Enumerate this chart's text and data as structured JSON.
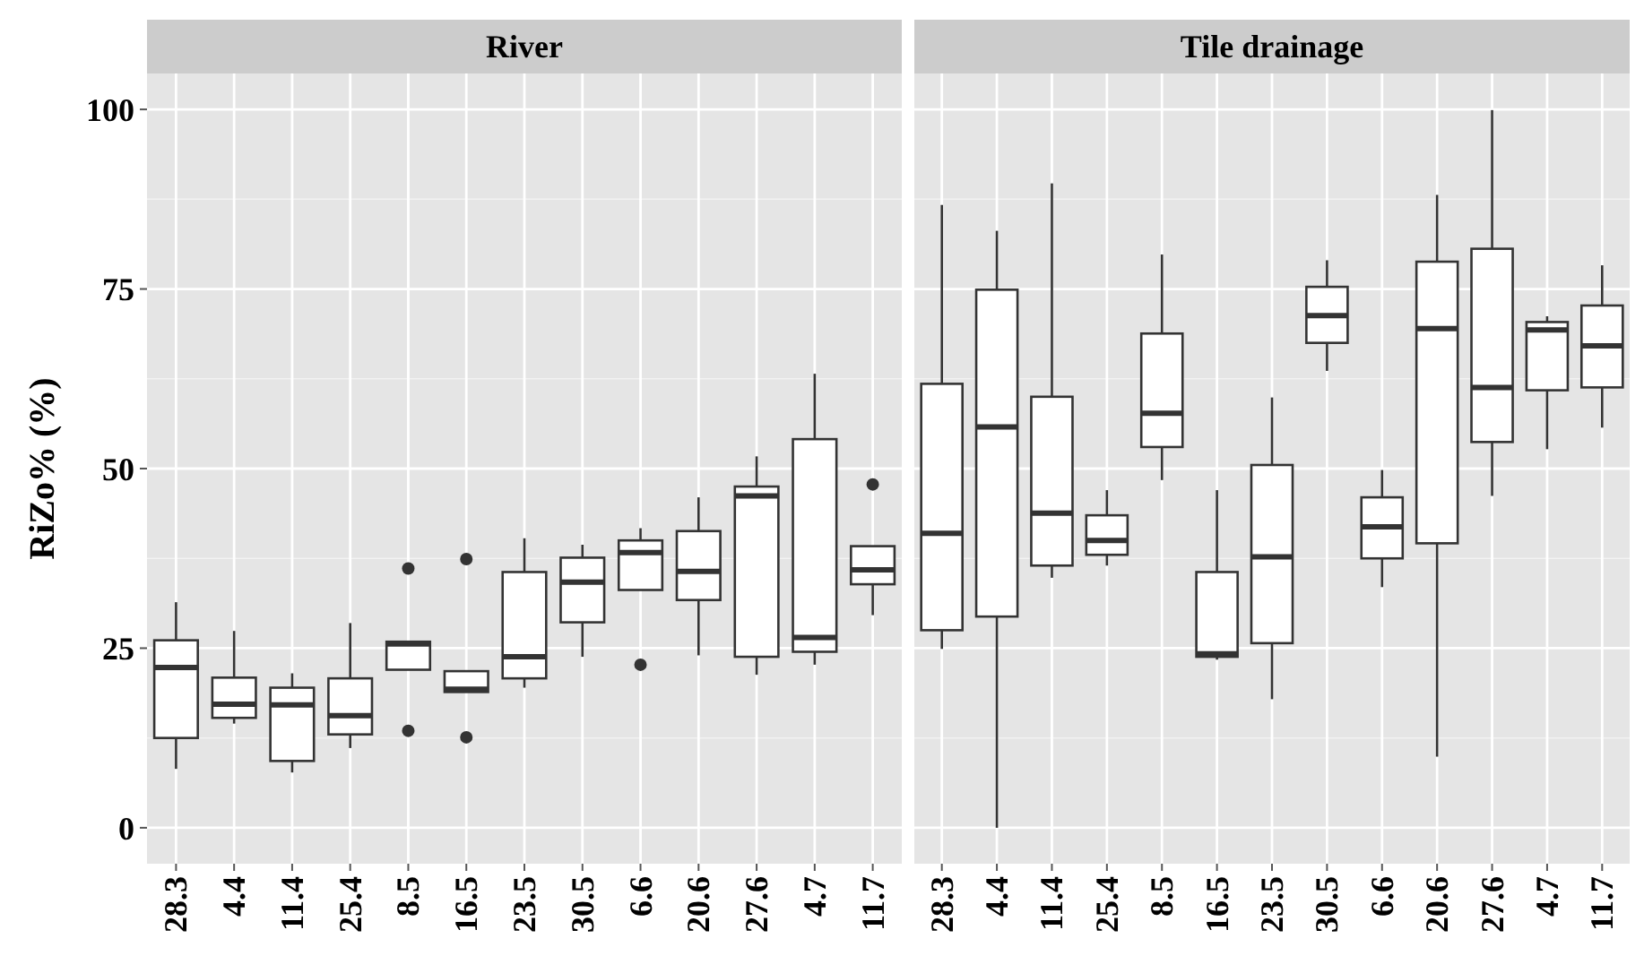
{
  "chart_data": [
    {
      "type": "box",
      "title": "River",
      "ylabel": "RiZo% (%)",
      "categories": [
        "28.3",
        "4.4",
        "11.4",
        "25.4",
        "8.5",
        "16.5",
        "23.5",
        "30.5",
        "6.6",
        "20.6",
        "27.6",
        "4.7",
        "11.7"
      ],
      "ylim": [
        -5,
        105
      ],
      "yticks": [
        0,
        25,
        50,
        75,
        100
      ],
      "grid": true,
      "boxes": [
        {
          "low": 8.2,
          "q1": 12.5,
          "median": 22.3,
          "q3": 26.1,
          "high": 31.4
        },
        {
          "low": 14.5,
          "q1": 15.3,
          "median": 17.2,
          "q3": 20.9,
          "high": 27.4
        },
        {
          "low": 7.7,
          "q1": 9.3,
          "median": 17.1,
          "q3": 19.5,
          "high": 21.5
        },
        {
          "low": 11.1,
          "q1": 13,
          "median": 15.6,
          "q3": 20.8,
          "high": 28.5
        },
        {
          "low": 22,
          "q1": 22,
          "median": 25.6,
          "q3": 25.9,
          "high": 25.9,
          "outliers": [
            36.1,
            13.5
          ]
        },
        {
          "low": 18.9,
          "q1": 18.9,
          "median": 19.3,
          "q3": 21.8,
          "high": 21.8,
          "outliers": [
            37.4,
            12.6
          ]
        },
        {
          "low": 19.5,
          "q1": 20.8,
          "median": 23.8,
          "q3": 35.6,
          "high": 40.3
        },
        {
          "low": 23.8,
          "q1": 28.6,
          "median": 34.2,
          "q3": 37.6,
          "high": 39.4
        },
        {
          "low": 33.1,
          "q1": 33.1,
          "median": 38.3,
          "q3": 40,
          "high": 41.7,
          "outliers": [
            22.7
          ]
        },
        {
          "low": 24,
          "q1": 31.7,
          "median": 35.7,
          "q3": 41.3,
          "high": 46
        },
        {
          "low": 21.3,
          "q1": 23.8,
          "median": 46.2,
          "q3": 47.5,
          "high": 51.7
        },
        {
          "low": 22.7,
          "q1": 24.5,
          "median": 26.5,
          "q3": 54.1,
          "high": 63.2
        },
        {
          "low": 29.6,
          "q1": 33.9,
          "median": 35.9,
          "q3": 39.2,
          "high": 39.2,
          "outliers": [
            47.8
          ]
        }
      ]
    },
    {
      "type": "box",
      "title": "Tile drainage",
      "categories": [
        "28.3",
        "4.4",
        "11.4",
        "25.4",
        "8.5",
        "16.5",
        "23.5",
        "30.5",
        "6.6",
        "20.6",
        "27.6",
        "4.7",
        "11.7"
      ],
      "ylim": [
        -5,
        105
      ],
      "yticks": [
        0,
        25,
        50,
        75,
        100
      ],
      "grid": true,
      "tick_labels": "x",
      "boxes": [
        {
          "low": 24.9,
          "q1": 27.5,
          "median": 41,
          "q3": 61.8,
          "high": 86.7
        },
        {
          "low": 0,
          "q1": 29.4,
          "median": 55.8,
          "q3": 74.9,
          "high": 83.1
        },
        {
          "low": 34.8,
          "q1": 36.5,
          "median": 43.8,
          "q3": 60,
          "high": 89.7
        },
        {
          "low": 36.5,
          "q1": 38,
          "median": 40,
          "q3": 43.5,
          "high": 47
        },
        {
          "low": 48.4,
          "q1": 53,
          "median": 57.7,
          "q3": 68.8,
          "high": 79.8
        },
        {
          "low": 23.4,
          "q1": 23.8,
          "median": 24.2,
          "q3": 35.6,
          "high": 47
        },
        {
          "low": 17.9,
          "q1": 25.7,
          "median": 37.7,
          "q3": 50.5,
          "high": 59.9
        },
        {
          "low": 63.6,
          "q1": 67.5,
          "median": 71.3,
          "q3": 75.3,
          "high": 79
        },
        {
          "low": 33.5,
          "q1": 37.5,
          "median": 41.9,
          "q3": 46,
          "high": 49.8
        },
        {
          "low": 9.9,
          "q1": 39.6,
          "median": 69.5,
          "q3": 78.8,
          "high": 88.1
        },
        {
          "low": 46.2,
          "q1": 53.7,
          "median": 61.3,
          "q3": 80.6,
          "high": 99.9
        },
        {
          "low": 52.7,
          "q1": 60.9,
          "median": 69.3,
          "q3": 70.4,
          "high": 71.2
        },
        {
          "low": 55.7,
          "q1": 61.3,
          "median": 67.1,
          "q3": 72.7,
          "high": 78.3
        }
      ]
    }
  ]
}
